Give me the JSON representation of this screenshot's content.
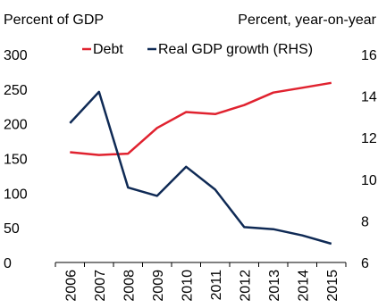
{
  "chart_data": {
    "type": "line",
    "title": "",
    "ylabel_left": "Percent of GDP",
    "ylabel_right": "Percent, year-on-year",
    "categories": [
      "2006",
      "2007",
      "2008",
      "2009",
      "2010",
      "2011",
      "2012",
      "2013",
      "2014",
      "2015"
    ],
    "y_left": {
      "min": 0,
      "max": 300,
      "ticks": [
        "0",
        "50",
        "100",
        "150",
        "200",
        "250",
        "300"
      ]
    },
    "y_right": {
      "min": 6,
      "max": 16,
      "ticks": [
        "6",
        "8",
        "10",
        "12",
        "14",
        "16"
      ]
    },
    "grid": false,
    "legend_position": "top",
    "series": [
      {
        "name": "Debt",
        "axis": "left",
        "color": "#e0222f",
        "values": [
          159,
          155,
          157,
          194,
          217,
          214,
          227,
          245,
          252,
          259
        ]
      },
      {
        "name": "Real GDP growth (RHS)",
        "axis": "right",
        "color": "#0f2a55",
        "values": [
          12.7,
          14.2,
          9.6,
          9.2,
          10.6,
          9.5,
          7.7,
          7.6,
          7.3,
          6.9
        ]
      }
    ]
  }
}
